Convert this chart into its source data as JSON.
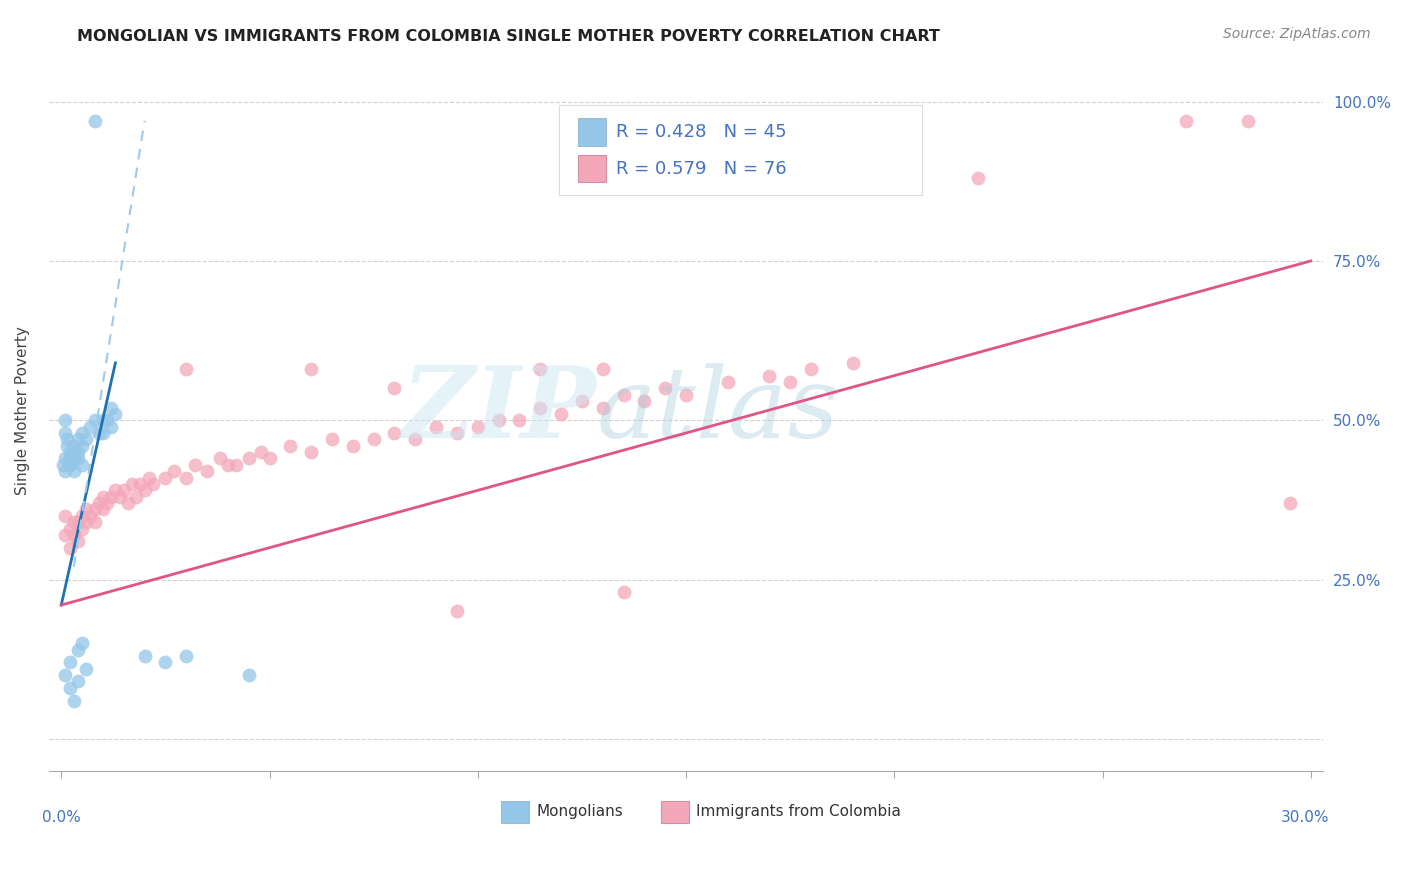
{
  "title": "MONGOLIAN VS IMMIGRANTS FROM COLOMBIA SINGLE MOTHER POVERTY CORRELATION CHART",
  "source": "Source: ZipAtlas.com",
  "ylabel": "Single Mother Poverty",
  "mongolian_color": "#93c6e8",
  "colombia_color": "#f4a7b9",
  "mongolian_trend_color": "#2171b5",
  "colombia_trend_color": "#e05585",
  "mongolian_dash_color": "#a0c8e8",
  "r1": "R = 0.428",
  "n1": "N = 45",
  "r2": "R = 0.579",
  "n2": "N = 76",
  "x_left_label": "0.0%",
  "x_right_label": "30.0%",
  "right_yticklabels": [
    "25.0%",
    "50.0%",
    "75.0%",
    "100.0%"
  ],
  "right_yticks": [
    0.25,
    0.5,
    0.75,
    1.0
  ],
  "legend_label1": "Mongolians",
  "legend_label2": "Immigrants from Colombia",
  "xlim": [
    -0.003,
    0.303
  ],
  "ylim": [
    -0.05,
    1.08
  ],
  "watermark_zip": "ZIP",
  "watermark_atlas": "atlas"
}
